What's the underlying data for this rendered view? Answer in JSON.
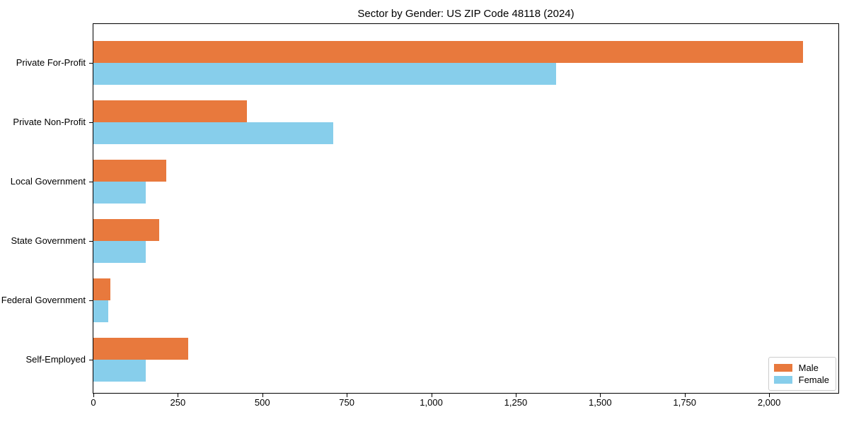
{
  "chart_data": {
    "type": "bar",
    "orientation": "horizontal",
    "title": "Sector by Gender: US ZIP Code 48118 (2024)",
    "categories": [
      "Private For-Profit",
      "Private Non-Profit",
      "Local Government",
      "State Government",
      "Federal Government",
      "Self-Employed"
    ],
    "series": [
      {
        "name": "Male",
        "color": "#e8793d",
        "values": [
          2100,
          455,
          215,
          195,
          50,
          280
        ]
      },
      {
        "name": "Female",
        "color": "#87ceeb",
        "values": [
          1370,
          710,
          155,
          155,
          45,
          155
        ]
      }
    ],
    "xlim": [
      0,
      2205
    ],
    "xticks": [
      0,
      250,
      500,
      750,
      1000,
      1250,
      1500,
      1750,
      2000
    ],
    "xtick_labels": [
      "0",
      "250",
      "500",
      "750",
      "1,000",
      "1,250",
      "1,500",
      "1,750",
      "2,000"
    ],
    "grid": false,
    "legend_position": "lower right",
    "colors": {
      "background": "#ffffff",
      "spine": "#000000",
      "text": "#000000",
      "legend_border": "#cccccc"
    }
  }
}
